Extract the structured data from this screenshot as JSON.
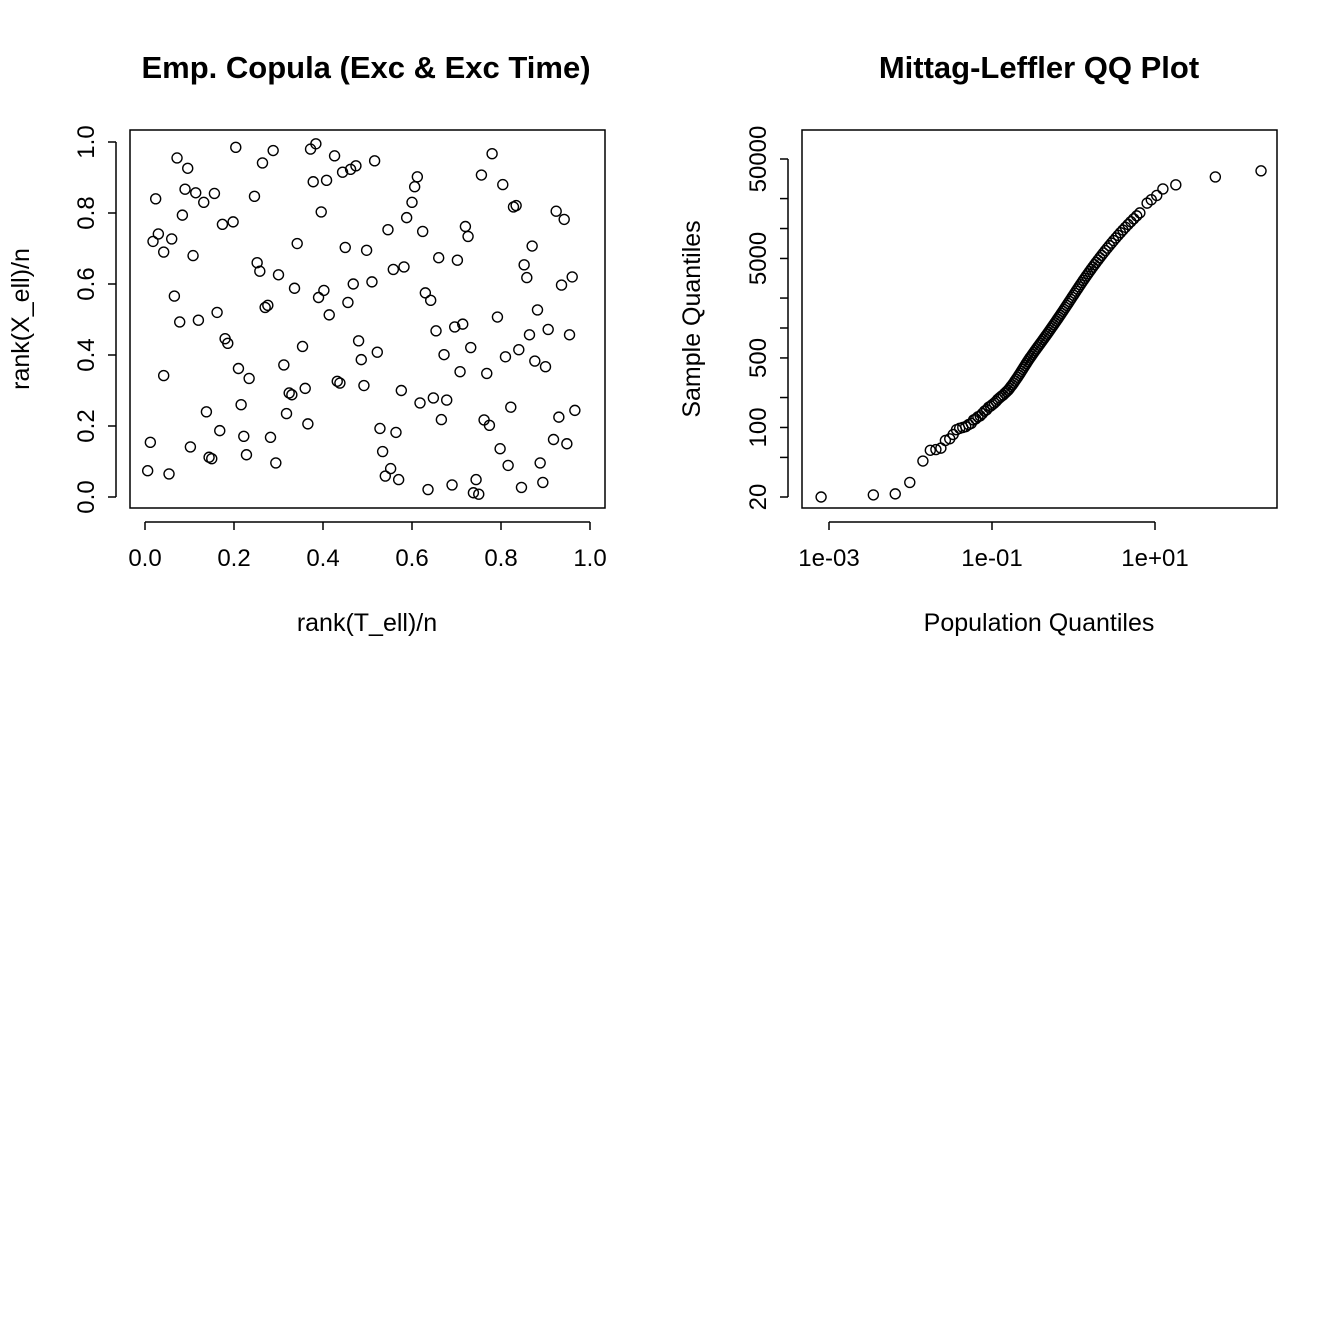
{
  "chart_data": [
    {
      "type": "scatter",
      "title": "Emp. Copula (Exc & Exc Time)",
      "xlabel": "rank(T_ell)/n",
      "ylabel": "rank(X_ell)/n",
      "xlim": [
        0,
        1
      ],
      "ylim": [
        0,
        1
      ],
      "x_ticks": [
        "0.0",
        "0.2",
        "0.4",
        "0.6",
        "0.8",
        "1.0"
      ],
      "y_ticks": [
        "0.0",
        "0.2",
        "0.4",
        "0.6",
        "0.8",
        "1.0"
      ],
      "grid": false,
      "points": [
        [
          0.006,
          0.074
        ],
        [
          0.012,
          0.154
        ],
        [
          0.018,
          0.72
        ],
        [
          0.024,
          0.84
        ],
        [
          0.03,
          0.741
        ],
        [
          0.042,
          0.69
        ],
        [
          0.042,
          0.342
        ],
        [
          0.054,
          0.065
        ],
        [
          0.06,
          0.727
        ],
        [
          0.066,
          0.566
        ],
        [
          0.072,
          0.955
        ],
        [
          0.078,
          0.493
        ],
        [
          0.084,
          0.794
        ],
        [
          0.09,
          0.867
        ],
        [
          0.096,
          0.926
        ],
        [
          0.102,
          0.141
        ],
        [
          0.108,
          0.68
        ],
        [
          0.114,
          0.857
        ],
        [
          0.12,
          0.498
        ],
        [
          0.132,
          0.83
        ],
        [
          0.138,
          0.24
        ],
        [
          0.144,
          0.112
        ],
        [
          0.15,
          0.108
        ],
        [
          0.156,
          0.855
        ],
        [
          0.162,
          0.52
        ],
        [
          0.168,
          0.187
        ],
        [
          0.174,
          0.768
        ],
        [
          0.18,
          0.446
        ],
        [
          0.186,
          0.433
        ],
        [
          0.198,
          0.775
        ],
        [
          0.204,
          0.985
        ],
        [
          0.21,
          0.362
        ],
        [
          0.216,
          0.26
        ],
        [
          0.222,
          0.171
        ],
        [
          0.228,
          0.119
        ],
        [
          0.234,
          0.334
        ],
        [
          0.246,
          0.847
        ],
        [
          0.252,
          0.66
        ],
        [
          0.258,
          0.636
        ],
        [
          0.264,
          0.941
        ],
        [
          0.27,
          0.534
        ],
        [
          0.276,
          0.54
        ],
        [
          0.282,
          0.168
        ],
        [
          0.288,
          0.976
        ],
        [
          0.294,
          0.096
        ],
        [
          0.3,
          0.626
        ],
        [
          0.312,
          0.372
        ],
        [
          0.318,
          0.235
        ],
        [
          0.324,
          0.293
        ],
        [
          0.33,
          0.288
        ],
        [
          0.336,
          0.588
        ],
        [
          0.342,
          0.714
        ],
        [
          0.354,
          0.424
        ],
        [
          0.36,
          0.306
        ],
        [
          0.366,
          0.206
        ],
        [
          0.372,
          0.98
        ],
        [
          0.378,
          0.888
        ],
        [
          0.384,
          0.995
        ],
        [
          0.39,
          0.562
        ],
        [
          0.396,
          0.803
        ],
        [
          0.402,
          0.582
        ],
        [
          0.408,
          0.892
        ],
        [
          0.414,
          0.513
        ],
        [
          0.426,
          0.961
        ],
        [
          0.432,
          0.326
        ],
        [
          0.438,
          0.321
        ],
        [
          0.444,
          0.915
        ],
        [
          0.45,
          0.703
        ],
        [
          0.456,
          0.548
        ],
        [
          0.462,
          0.923
        ],
        [
          0.468,
          0.6
        ],
        [
          0.474,
          0.933
        ],
        [
          0.48,
          0.44
        ],
        [
          0.486,
          0.387
        ],
        [
          0.492,
          0.314
        ],
        [
          0.498,
          0.695
        ],
        [
          0.51,
          0.606
        ],
        [
          0.516,
          0.947
        ],
        [
          0.522,
          0.408
        ],
        [
          0.528,
          0.193
        ],
        [
          0.534,
          0.128
        ],
        [
          0.54,
          0.059
        ],
        [
          0.546,
          0.753
        ],
        [
          0.552,
          0.08
        ],
        [
          0.558,
          0.641
        ],
        [
          0.564,
          0.182
        ],
        [
          0.57,
          0.049
        ],
        [
          0.576,
          0.3
        ],
        [
          0.582,
          0.648
        ],
        [
          0.588,
          0.787
        ],
        [
          0.6,
          0.83
        ],
        [
          0.606,
          0.874
        ],
        [
          0.612,
          0.902
        ],
        [
          0.618,
          0.265
        ],
        [
          0.624,
          0.748
        ],
        [
          0.63,
          0.575
        ],
        [
          0.636,
          0.021
        ],
        [
          0.642,
          0.554
        ],
        [
          0.648,
          0.279
        ],
        [
          0.654,
          0.468
        ],
        [
          0.66,
          0.674
        ],
        [
          0.666,
          0.218
        ],
        [
          0.672,
          0.401
        ],
        [
          0.678,
          0.273
        ],
        [
          0.69,
          0.034
        ],
        [
          0.696,
          0.479
        ],
        [
          0.702,
          0.667
        ],
        [
          0.708,
          0.353
        ],
        [
          0.714,
          0.487
        ],
        [
          0.72,
          0.762
        ],
        [
          0.726,
          0.734
        ],
        [
          0.732,
          0.421
        ],
        [
          0.738,
          0.012
        ],
        [
          0.744,
          0.049
        ],
        [
          0.75,
          0.008
        ],
        [
          0.756,
          0.907
        ],
        [
          0.762,
          0.217
        ],
        [
          0.768,
          0.348
        ],
        [
          0.774,
          0.202
        ],
        [
          0.78,
          0.967
        ],
        [
          0.792,
          0.507
        ],
        [
          0.798,
          0.136
        ],
        [
          0.804,
          0.88
        ],
        [
          0.81,
          0.395
        ],
        [
          0.816,
          0.089
        ],
        [
          0.822,
          0.253
        ],
        [
          0.828,
          0.817
        ],
        [
          0.834,
          0.821
        ],
        [
          0.84,
          0.415
        ],
        [
          0.846,
          0.027
        ],
        [
          0.852,
          0.654
        ],
        [
          0.858,
          0.618
        ],
        [
          0.864,
          0.457
        ],
        [
          0.87,
          0.707
        ],
        [
          0.876,
          0.383
        ],
        [
          0.882,
          0.527
        ],
        [
          0.888,
          0.096
        ],
        [
          0.894,
          0.041
        ],
        [
          0.9,
          0.367
        ],
        [
          0.906,
          0.472
        ],
        [
          0.918,
          0.162
        ],
        [
          0.924,
          0.805
        ],
        [
          0.93,
          0.225
        ],
        [
          0.936,
          0.597
        ],
        [
          0.942,
          0.782
        ],
        [
          0.948,
          0.15
        ],
        [
          0.954,
          0.457
        ],
        [
          0.96,
          0.62
        ],
        [
          0.966,
          0.244
        ]
      ]
    },
    {
      "type": "scatter",
      "title": "Mittag-Leffler QQ Plot",
      "xlabel": "Population Quantiles",
      "ylabel": "Sample Quantiles",
      "xscale": "log",
      "yscale": "log",
      "xlim": [
        0.0005,
        500
      ],
      "ylim": [
        17,
        120000
      ],
      "x_ticks": [
        "1e-03",
        "1e-01",
        "1e+01"
      ],
      "y_ticks": [
        "20",
        "100",
        "500",
        "5000",
        "50000"
      ],
      "grid": false,
      "points": [
        [
          0.0008,
          20
        ],
        [
          0.0035,
          21
        ],
        [
          0.0065,
          21.5
        ],
        [
          0.0098,
          28
        ],
        [
          0.0142,
          46
        ],
        [
          0.0175,
          59
        ],
        [
          0.0205,
          60
        ],
        [
          0.0236,
          62
        ],
        [
          0.0268,
          74
        ],
        [
          0.0303,
          77
        ],
        [
          0.0334,
          85
        ],
        [
          0.0367,
          95
        ],
        [
          0.0401,
          98
        ],
        [
          0.0438,
          100
        ],
        [
          0.0476,
          102
        ],
        [
          0.0516,
          107
        ],
        [
          0.0556,
          110
        ],
        [
          0.0595,
          119
        ],
        [
          0.0632,
          122
        ],
        [
          0.0672,
          128
        ],
        [
          0.0716,
          131
        ],
        [
          0.0762,
          138
        ],
        [
          0.081,
          146
        ],
        [
          0.086,
          151
        ],
        [
          0.091,
          160
        ],
        [
          0.096,
          164
        ],
        [
          0.1012,
          170
        ],
        [
          0.1066,
          176
        ],
        [
          0.1122,
          183
        ],
        [
          0.118,
          192
        ],
        [
          0.1242,
          199
        ],
        [
          0.1306,
          206
        ],
        [
          0.1372,
          212
        ],
        [
          0.144,
          221
        ],
        [
          0.1508,
          229
        ],
        [
          0.1576,
          237
        ],
        [
          0.1642,
          247
        ],
        [
          0.1708,
          258
        ],
        [
          0.1774,
          268
        ],
        [
          0.1842,
          280
        ],
        [
          0.1912,
          293
        ],
        [
          0.1984,
          306
        ],
        [
          0.2058,
          320
        ],
        [
          0.2134,
          335
        ],
        [
          0.2212,
          350
        ],
        [
          0.2292,
          367
        ],
        [
          0.2374,
          384
        ],
        [
          0.2458,
          402
        ],
        [
          0.2544,
          420
        ],
        [
          0.2632,
          439
        ],
        [
          0.2724,
          459
        ],
        [
          0.282,
          479
        ],
        [
          0.292,
          500
        ],
        [
          0.3026,
          520
        ],
        [
          0.3138,
          543
        ],
        [
          0.3256,
          567
        ],
        [
          0.338,
          592
        ],
        [
          0.351,
          618
        ],
        [
          0.3646,
          645
        ],
        [
          0.3786,
          673
        ],
        [
          0.3932,
          702
        ],
        [
          0.4082,
          732
        ],
        [
          0.4238,
          764
        ],
        [
          0.44,
          797
        ],
        [
          0.4568,
          832
        ],
        [
          0.4742,
          868
        ],
        [
          0.4922,
          906
        ],
        [
          0.5108,
          946
        ],
        [
          0.53,
          988
        ],
        [
          0.55,
          1032
        ],
        [
          0.5706,
          1078
        ],
        [
          0.592,
          1126
        ],
        [
          0.6142,
          1176
        ],
        [
          0.6372,
          1229
        ],
        [
          0.6612,
          1285
        ],
        [
          0.6862,
          1343
        ],
        [
          0.712,
          1405
        ],
        [
          0.7388,
          1470
        ],
        [
          0.7666,
          1538
        ],
        [
          0.7956,
          1610
        ],
        [
          0.8258,
          1686
        ],
        [
          0.8572,
          1765
        ],
        [
          0.89,
          1850
        ],
        [
          0.9242,
          1940
        ],
        [
          0.96,
          2035
        ],
        [
          0.9976,
          2135
        ],
        [
          1.037,
          2240
        ],
        [
          1.0784,
          2352
        ],
        [
          1.1218,
          2470
        ],
        [
          1.1676,
          2595
        ],
        [
          1.2158,
          2727
        ],
        [
          1.2668,
          2866
        ],
        [
          1.3208,
          3014
        ],
        [
          1.378,
          3170
        ],
        [
          1.4388,
          3335
        ],
        [
          1.5034,
          3510
        ],
        [
          1.5722,
          3696
        ],
        [
          1.6456,
          3893
        ],
        [
          1.724,
          4102
        ],
        [
          1.8078,
          4325
        ],
        [
          1.8976,
          4562
        ],
        [
          1.994,
          4815
        ],
        [
          2.0976,
          5084
        ],
        [
          2.2092,
          5371
        ],
        [
          2.3296,
          5678
        ],
        [
          2.4598,
          6006
        ],
        [
          2.601,
          6357
        ],
        [
          2.7544,
          6733
        ],
        [
          2.9216,
          7136
        ],
        [
          3.1044,
          7569
        ],
        [
          3.3048,
          8035
        ],
        [
          3.5254,
          8537
        ],
        [
          3.769,
          9078
        ],
        [
          4.039,
          9662
        ],
        [
          4.3396,
          10294
        ],
        [
          4.6758,
          10978
        ],
        [
          5.0534,
          11720
        ],
        [
          5.48,
          12527
        ],
        [
          5.965,
          13406
        ],
        [
          6.52,
          14365
        ],
        [
          8.0,
          18000
        ],
        [
          9.0,
          19500
        ],
        [
          10.5,
          21500
        ],
        [
          12.5,
          25000
        ],
        [
          18.0,
          27500
        ],
        [
          55.0,
          33000
        ],
        [
          200.0,
          38000
        ]
      ]
    }
  ]
}
